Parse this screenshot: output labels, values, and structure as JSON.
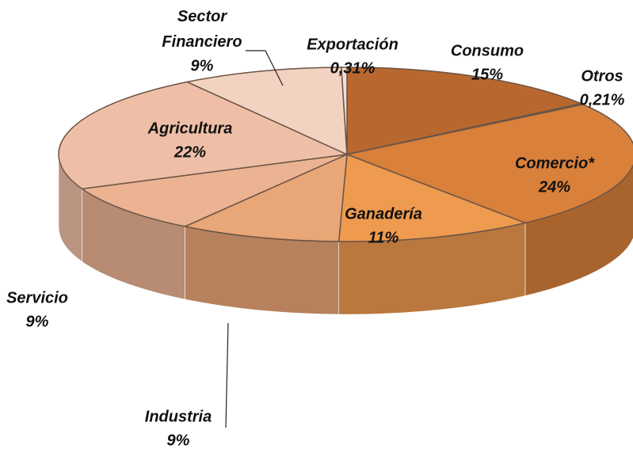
{
  "chart_data": {
    "type": "pie",
    "categories": [
      "Consumo",
      "Otros",
      "Comercio*",
      "Ganadería",
      "Industria",
      "Servicio",
      "Agricultura",
      "Sector Financiero",
      "Exportación"
    ],
    "values": [
      15,
      0.21,
      24,
      11,
      9,
      9,
      22,
      9,
      0.31
    ],
    "value_labels": [
      "15%",
      "0,21%",
      "24%",
      "11%",
      "9%",
      "9%",
      "22%",
      "9%",
      "0,31%"
    ],
    "colors": [
      "#b8682f",
      "#c06f32",
      "#d9803b",
      "#ee9a4f",
      "#e9a676",
      "#ebb392",
      "#eebfa6",
      "#f2d2c1",
      "#f4ddd0"
    ]
  }
}
